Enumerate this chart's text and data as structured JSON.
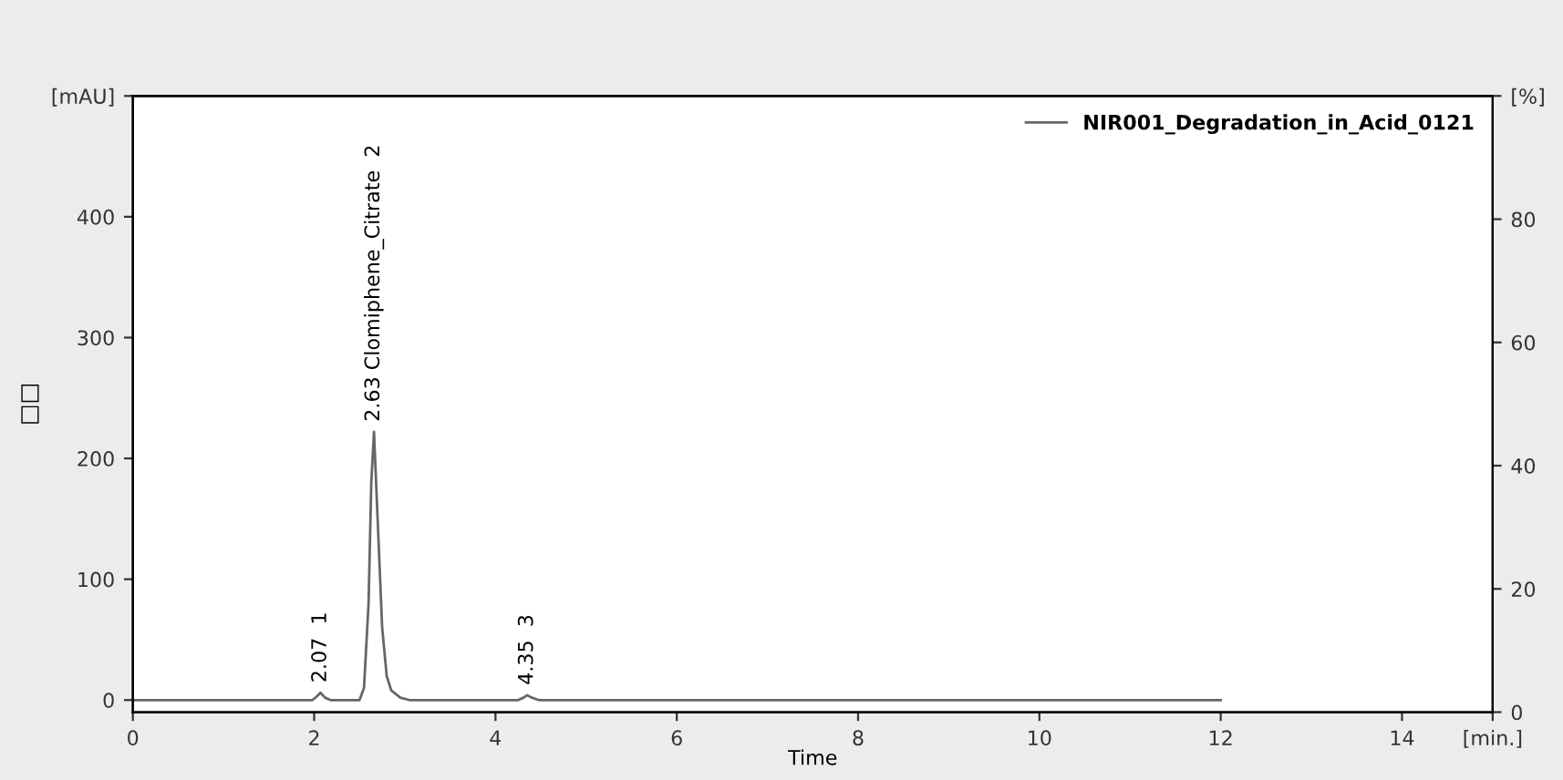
{
  "chart_data": {
    "type": "line",
    "xlabel": "Time",
    "ylabel": "□□",
    "xlim": [
      0,
      15
    ],
    "xticks": [
      0,
      2,
      4,
      6,
      8,
      10,
      12,
      14,
      {
        "value": 15,
        "label": "[min.]"
      }
    ],
    "ylim": [
      -10,
      500
    ],
    "yticks": [
      0,
      100,
      200,
      300,
      400,
      {
        "value": 500,
        "label": "[mAU]"
      }
    ],
    "y2lim": [
      0,
      100
    ],
    "y2ticks": [
      0,
      20,
      40,
      60,
      80,
      {
        "value": 100,
        "label": "[%]"
      }
    ],
    "series": [
      {
        "name": "NIR001_Degradation_in_Acid_0121",
        "color": "#666666",
        "x": [
          0,
          1.98,
          2.03,
          2.07,
          2.12,
          2.18,
          2.5,
          2.55,
          2.6,
          2.63,
          2.66,
          2.7,
          2.75,
          2.8,
          2.85,
          2.95,
          3.05,
          4.25,
          4.31,
          4.35,
          4.4,
          4.48,
          12
        ],
        "values": [
          0,
          0,
          3,
          6,
          2,
          0,
          0,
          10,
          80,
          180,
          222,
          150,
          60,
          20,
          8,
          2,
          0,
          0,
          2,
          4,
          2,
          0,
          0
        ]
      }
    ],
    "annotations": [
      {
        "text": "2.07  1",
        "x": 2.07,
        "y": 6
      },
      {
        "text": "2.63 Clomiphene_Citrate  2",
        "x": 2.66,
        "y": 222
      },
      {
        "text": "4.35  3",
        "x": 4.35,
        "y": 4
      }
    ],
    "legend": "top right",
    "grid": false,
    "marker": "none",
    "line_style": "solid"
  }
}
